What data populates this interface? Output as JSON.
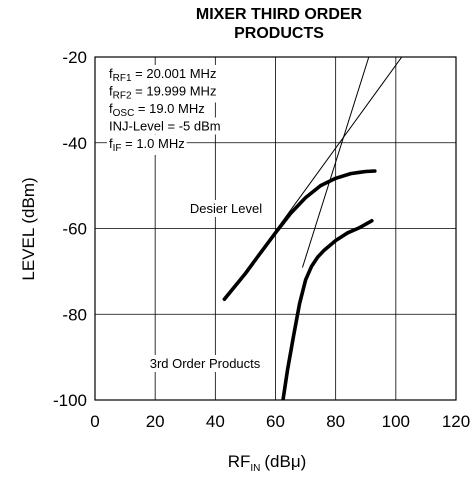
{
  "chart_data": {
    "type": "line",
    "title": [
      "MIXER THIRD ORDER",
      "PRODUCTS"
    ],
    "ylabel": "LEVEL (dBm)",
    "xlabel": {
      "main": "RF",
      "sub": "IN",
      "unit": "(dBμ)"
    },
    "xlim": [
      0,
      120
    ],
    "ylim": [
      -100,
      -20
    ],
    "xticks": [
      0,
      20,
      40,
      60,
      80,
      100,
      120
    ],
    "yticks": [
      -20,
      -40,
      -60,
      -80,
      -100
    ],
    "grid": true,
    "annotations": [
      {
        "prefix": "f",
        "sub": "RF1",
        "text": " = 20.001 MHz"
      },
      {
        "prefix": "f",
        "sub": "RF2",
        "text": " = 19.999 MHz"
      },
      {
        "prefix": "f",
        "sub": "OSC",
        "text": " = 19.0 MHz"
      },
      {
        "prefix": "",
        "sub": "",
        "text": "INJ-Level = -5 dBm"
      },
      {
        "prefix": "f",
        "sub": "IF",
        "text": " = 1.0 MHz"
      }
    ],
    "series": [
      {
        "name": "Desier Level",
        "style": "thick",
        "x": [
          43,
          50,
          55,
          60,
          65,
          70,
          75,
          80,
          85,
          88,
          90,
          93
        ],
        "y": [
          -76.5,
          -70.5,
          -65.7,
          -61.0,
          -56.5,
          -52.8,
          -50.0,
          -48.3,
          -47.2,
          -46.9,
          -46.7,
          -46.6
        ]
      },
      {
        "name": "3rd Order Products",
        "style": "thick",
        "x": [
          62.5,
          64,
          66,
          68,
          70,
          72,
          74,
          76,
          80,
          84,
          88,
          92
        ],
        "y": [
          -100,
          -93.0,
          -85.0,
          -77.5,
          -72.0,
          -68.8,
          -66.7,
          -65.2,
          -62.8,
          -61.0,
          -59.8,
          -58.2
        ]
      },
      {
        "name": "",
        "style": "thin",
        "x": [
          58,
          102
        ],
        "y": [
          -62.5,
          -20
        ]
      },
      {
        "name": "",
        "style": "thin",
        "x": [
          69,
          91
        ],
        "y": [
          -69,
          -20
        ]
      }
    ]
  }
}
